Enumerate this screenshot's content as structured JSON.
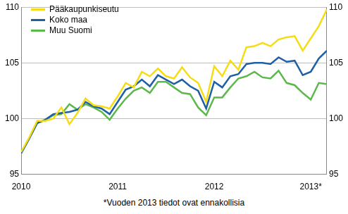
{
  "chart_data": {
    "type": "line",
    "categories": [
      "2010",
      null,
      null,
      null,
      null,
      null,
      null,
      null,
      null,
      null,
      null,
      null,
      "2011",
      null,
      null,
      null,
      null,
      null,
      null,
      null,
      null,
      null,
      null,
      null,
      "2012",
      null,
      null,
      null,
      null,
      null,
      null,
      null,
      null,
      null,
      null,
      null,
      "2013*",
      null,
      null
    ],
    "series": [
      {
        "name": "Pääkaupunkiseutu",
        "color": "#f5dc14",
        "values": [
          97.0,
          98.3,
          99.8,
          99.8,
          100.0,
          101.0,
          99.5,
          100.5,
          101.8,
          101.2,
          101.1,
          100.9,
          102.0,
          103.2,
          102.8,
          104.2,
          103.8,
          104.5,
          103.8,
          103.6,
          104.6,
          103.7,
          103.2,
          101.5,
          104.7,
          103.8,
          105.2,
          104.4,
          106.4,
          106.5,
          106.8,
          106.5,
          107.1,
          107.3,
          107.4,
          106.1,
          107.2,
          108.3,
          109.8
        ]
      },
      {
        "name": "Koko maa",
        "color": "#1f5fa6",
        "values": [
          96.9,
          98.2,
          99.6,
          99.9,
          100.4,
          100.5,
          100.6,
          100.8,
          101.5,
          101.1,
          100.9,
          100.4,
          101.5,
          102.6,
          102.9,
          103.5,
          102.9,
          103.9,
          103.5,
          103.1,
          103.5,
          102.9,
          102.5,
          100.9,
          103.3,
          102.8,
          103.8,
          104.0,
          104.9,
          105.0,
          105.0,
          104.9,
          105.5,
          105.1,
          105.2,
          103.9,
          104.2,
          105.4,
          106.1
        ]
      },
      {
        "name": "Muu Suomi",
        "color": "#5cb84a",
        "values": [
          96.9,
          98.2,
          99.6,
          99.9,
          100.3,
          100.4,
          101.3,
          100.8,
          101.3,
          101.0,
          100.6,
          99.9,
          100.9,
          101.8,
          102.5,
          102.8,
          102.3,
          103.3,
          103.3,
          102.8,
          102.3,
          102.2,
          101.0,
          100.3,
          101.9,
          101.9,
          102.8,
          103.6,
          103.8,
          104.2,
          103.7,
          103.6,
          104.3,
          103.2,
          103.0,
          102.3,
          101.7,
          103.2,
          103.1
        ]
      }
    ],
    "ylim": [
      95,
      110
    ],
    "yticks": [
      95,
      100,
      105,
      110
    ],
    "y2lim": [
      95,
      110
    ],
    "y2ticks": [
      95,
      100,
      105,
      110
    ],
    "grid": true,
    "legend": "upper left",
    "annotations": [
      "*Vuoden 2013 tiedot ovat ennakollisia"
    ]
  }
}
